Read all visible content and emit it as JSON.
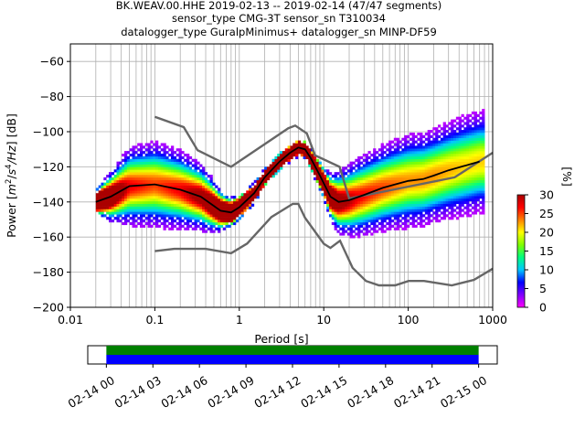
{
  "title": {
    "line1": "BK.WEAV.00.HHE   2019-02-13 -- 2019-02-14  (47/47 segments)",
    "line2": "sensor_type CMG-3T sensor_sn T310034",
    "line3": "datalogger_type GuralpMinimus+ datalogger_sn MINP-DF59"
  },
  "chart_data": [
    {
      "type": "heatmap",
      "subtype": "probabilistic-power-spectral-density",
      "xlabel": "Period [s]",
      "ylabel": "Power [m²/s⁴/Hz] [dB]",
      "ylabel_parts": [
        "Power [",
        "m",
        "2",
        "/",
        "s",
        "4",
        "/Hz",
        "] [dB]"
      ],
      "xscale": "log",
      "xlim": [
        0.01,
        1000
      ],
      "ylim": [
        -200,
        -50
      ],
      "x_ticks": [
        0.01,
        0.1,
        1,
        10,
        100,
        1000
      ],
      "x_tick_labels": [
        "0.01",
        "0.1",
        "1",
        "10",
        "100",
        "1000"
      ],
      "y_ticks": [
        -200,
        -180,
        -160,
        -140,
        -120,
        -100,
        -80,
        -60
      ],
      "y_tick_labels": [
        "−200",
        "−180",
        "−160",
        "−140",
        "−120",
        "−100",
        "−80",
        "−60"
      ],
      "grid": true,
      "colorbar": {
        "label": "[%]",
        "min": 0,
        "max": 30,
        "ticks": [
          0,
          5,
          10,
          15,
          20,
          25,
          30
        ],
        "tick_labels": [
          "0",
          "5",
          "10",
          "15",
          "20",
          "25",
          "30"
        ],
        "colormap": [
          "#ff00ff",
          "#8000ff",
          "#0000ff",
          "#00c8ff",
          "#00ff80",
          "#80ff00",
          "#ffff00",
          "#ff8000",
          "#ff0000",
          "#aa0000"
        ]
      },
      "mode_curve": {
        "x": [
          0.02,
          0.03,
          0.05,
          0.1,
          0.2,
          0.35,
          0.6,
          0.8,
          1,
          1.5,
          2,
          3,
          4,
          5,
          6,
          7,
          9,
          12,
          15,
          20,
          30,
          50,
          70,
          100,
          150,
          200,
          300,
          500,
          700
        ],
        "y": [
          -140,
          -137,
          -131,
          -130,
          -133,
          -137,
          -145,
          -146,
          -143,
          -135,
          -126,
          -117,
          -112,
          -109,
          -110,
          -115,
          -125,
          -137,
          -140,
          -139,
          -136,
          -132,
          -130,
          -128,
          -127,
          -125,
          -122,
          -119,
          -117
        ]
      },
      "nhnm": {
        "x": [
          0.1,
          0.22,
          0.32,
          0.8,
          3.8,
          4.6,
          6.3,
          7.9,
          15.4,
          20,
          354.8,
          1000
        ],
        "y": [
          -91.5,
          -97.4,
          -110.5,
          -120,
          -98,
          -96.5,
          -101,
          -113.5,
          -120,
          -138,
          -126,
          -112
        ]
      },
      "nlnm": {
        "x": [
          0.1,
          0.17,
          0.4,
          0.8,
          1.24,
          2.4,
          4.3,
          5,
          6,
          10,
          12,
          15.6,
          21.9,
          31.6,
          45,
          70,
          101,
          154,
          328,
          600,
          1000
        ],
        "y": [
          -168,
          -166.7,
          -166.7,
          -169.2,
          -163.7,
          -148.6,
          -141.1,
          -141.1,
          -149,
          -163.8,
          -166.2,
          -162.1,
          -177.5,
          -185,
          -187.5,
          -187.5,
          -185,
          -185,
          -187.5,
          -184.4,
          -178
        ]
      },
      "band_center": {
        "x": [
          0.02,
          0.03,
          0.05,
          0.1,
          0.2,
          0.35,
          0.6,
          0.8,
          1,
          1.5,
          2,
          3,
          4,
          5,
          6,
          7,
          9,
          12,
          15,
          20,
          30,
          50,
          70,
          100,
          150,
          200,
          300,
          500,
          700
        ],
        "y": [
          -140,
          -137,
          -131,
          -130,
          -133,
          -137,
          -145,
          -146,
          -143,
          -135,
          -126,
          -117,
          -112,
          -109,
          -110,
          -115,
          -125,
          -137,
          -140,
          -139,
          -136,
          -132,
          -130,
          -128,
          -127,
          -125,
          -122,
          -119,
          -117
        ]
      },
      "band_spread": {
        "x": [
          0.02,
          0.05,
          0.1,
          0.2,
          0.4,
          0.7,
          1,
          2,
          4,
          6,
          10,
          15,
          25,
          50,
          100,
          200,
          500,
          800
        ],
        "y": [
          3,
          10,
          11,
          10,
          8,
          4,
          3,
          2,
          2,
          2,
          4,
          8,
          10,
          11,
          12,
          12,
          13,
          13
        ]
      }
    },
    {
      "type": "timeline",
      "tick_labels": [
        "02-14 00",
        "02-14 03",
        "02-14 06",
        "02-14 09",
        "02-14 12",
        "02-14 15",
        "02-14 18",
        "02-14 21",
        "02-15 00"
      ],
      "tick_hours": [
        0,
        3,
        6,
        9,
        12,
        15,
        18,
        21,
        24
      ],
      "xlim_hours": [
        -1.2,
        25.2
      ],
      "segments": [
        {
          "start_hour": 0,
          "end_hour": 24
        }
      ],
      "series": [
        {
          "color": "#008000",
          "start_hour": 0,
          "end_hour": 24
        },
        {
          "color": "#0000ff",
          "start_hour": 0,
          "end_hour": 24
        }
      ]
    }
  ]
}
